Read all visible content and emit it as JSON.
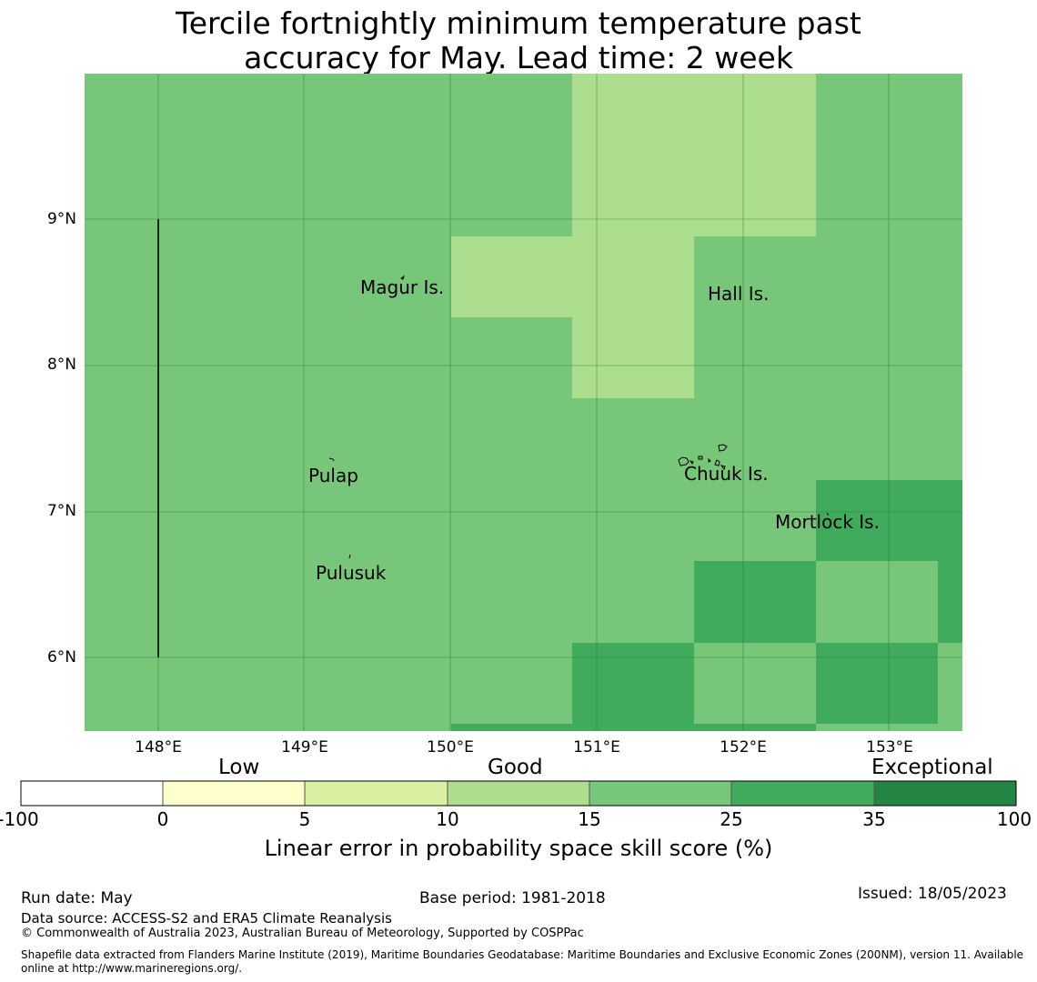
{
  "title": {
    "line1": "Tercile fortnightly minimum temperature past",
    "line2": "accuracy for May. Lead time: 2 week"
  },
  "map": {
    "lat_labels": [
      "9°N",
      "8°N",
      "7°N",
      "6°N"
    ],
    "lon_labels": [
      "148°E",
      "149°E",
      "150°E",
      "151°E",
      "152°E",
      "153°E"
    ],
    "places": [
      "Magur Is.",
      "Hall Is.",
      "Pulap",
      "Chuuk Is.",
      "Mortlock Is.",
      "Pulusuk"
    ],
    "colors": {
      "base": "#78c679",
      "light": "#addd8e",
      "dark": "#41ab5d",
      "darkest": "#238443",
      "pale": "#d9f0a3",
      "yellow": "#ffffcc"
    }
  },
  "colorbar": {
    "category_labels": [
      "Low",
      "Good",
      "Exceptional"
    ],
    "ticks": [
      "-100",
      "0",
      "5",
      "10",
      "15",
      "25",
      "35",
      "100"
    ],
    "colors": [
      "#ffffff",
      "#ffffcc",
      "#d9f0a3",
      "#addd8e",
      "#78c679",
      "#41ab5d",
      "#238443"
    ],
    "label": "Linear error in probability space skill score (%)"
  },
  "footer": {
    "run_date": "Run date: May",
    "base_period": "Base period: 1981-2018",
    "issued": "Issued: 18/05/2023",
    "data_source": "Data source: ACCESS-S2 and ERA5 Climate Reanalysis",
    "copyright": "© Commonwealth of Australia 2023, Australian Bureau of Meteorology, Supported by COSPPac",
    "shapefile_line1": "Shapefile data extracted from Flanders Marine Institute (2019), Maritime Boundaries Geodatabase: Maritime Boundaries and Exclusive Economic Zones (200NM), version 11. Available",
    "shapefile_line2": "online at http://www.marineregions.org/."
  }
}
